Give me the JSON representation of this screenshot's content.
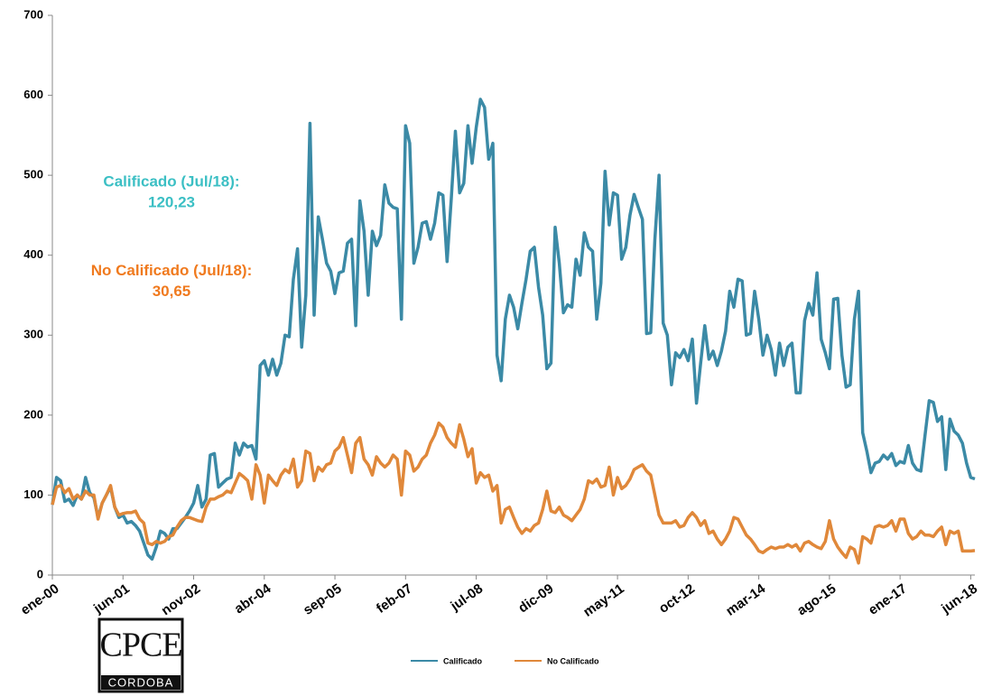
{
  "chart_data": {
    "type": "line",
    "categories": [
      "ene-00",
      null,
      null,
      null,
      null,
      null,
      null,
      null,
      null,
      null,
      null,
      null,
      null,
      null,
      null,
      null,
      null,
      "jun-01",
      null,
      null,
      null,
      null,
      null,
      null,
      null,
      null,
      null,
      null,
      null,
      null,
      null,
      null,
      null,
      null,
      "nov-02",
      null,
      null,
      null,
      null,
      null,
      null,
      null,
      null,
      null,
      null,
      null,
      null,
      null,
      null,
      null,
      null,
      "abr-04",
      null,
      null,
      null,
      null,
      null,
      null,
      null,
      null,
      null,
      null,
      null,
      null,
      null,
      null,
      null,
      null,
      "sep-05",
      null,
      null,
      null,
      null,
      null,
      null,
      null,
      null,
      null,
      null,
      null,
      null,
      null,
      null,
      null,
      null,
      "feb-07",
      null,
      null,
      null,
      null,
      null,
      null,
      null,
      null,
      null,
      null,
      null,
      null,
      null,
      null,
      null,
      null,
      "jul-08",
      null,
      null,
      null,
      null,
      null,
      null,
      null,
      null,
      null,
      null,
      null,
      null,
      null,
      null,
      null,
      null,
      "dic-09",
      null,
      null,
      null,
      null,
      null,
      null,
      null,
      null,
      null,
      null,
      null,
      null,
      null,
      null,
      null,
      null,
      "may-11",
      null,
      null,
      null,
      null,
      null,
      null,
      null,
      null,
      null,
      null,
      null,
      null,
      null,
      null,
      null,
      null,
      "oct-12",
      null,
      null,
      null,
      null,
      null,
      null,
      null,
      null,
      null,
      null,
      null,
      null,
      null,
      null,
      null,
      null,
      "mar-14",
      null,
      null,
      null,
      null,
      null,
      null,
      null,
      null,
      null,
      null,
      null,
      null,
      null,
      null,
      null,
      null,
      "ago-15",
      null,
      null,
      null,
      null,
      null,
      null,
      null,
      null,
      null,
      null,
      null,
      null,
      null,
      null,
      null,
      null,
      "ene-17",
      null,
      null,
      null,
      null,
      null,
      null,
      null,
      null,
      null,
      null,
      null,
      null,
      null,
      null,
      null,
      null,
      "jun-18",
      null
    ],
    "series": [
      {
        "name": "Calificado",
        "color": "#3b8aa6",
        "values": [
          88,
          122,
          118,
          92,
          95,
          87,
          100,
          95,
          122,
          103,
          97,
          72,
          90,
          100,
          110,
          85,
          72,
          75,
          65,
          67,
          62,
          55,
          40,
          25,
          20,
          35,
          55,
          52,
          45,
          58,
          58,
          65,
          72,
          80,
          90,
          112,
          85,
          95,
          150,
          152,
          110,
          115,
          120,
          122,
          165,
          150,
          165,
          160,
          162,
          145,
          262,
          268,
          250,
          270,
          250,
          265,
          300,
          298,
          370,
          408,
          285,
          350,
          565,
          325,
          448,
          420,
          390,
          380,
          352,
          378,
          380,
          415,
          420,
          312,
          468,
          430,
          350,
          430,
          412,
          425,
          488,
          465,
          460,
          458,
          320,
          562,
          540,
          390,
          410,
          440,
          442,
          420,
          440,
          478,
          475,
          392,
          470,
          555,
          478,
          490,
          562,
          515,
          560,
          595,
          585,
          520,
          540,
          275,
          243,
          320,
          350,
          335,
          308,
          340,
          370,
          405,
          410,
          360,
          325,
          258,
          265,
          435,
          390,
          328,
          338,
          335,
          395,
          375,
          428,
          410,
          405,
          320,
          365,
          505,
          438,
          478,
          475,
          395,
          410,
          450,
          476,
          460,
          445,
          302,
          303,
          420,
          500,
          315,
          300,
          238,
          278,
          272,
          282,
          268,
          295,
          215,
          265,
          312,
          270,
          280,
          262,
          280,
          305,
          355,
          335,
          370,
          368,
          300,
          302,
          355,
          320,
          275,
          300,
          282,
          250,
          290,
          262,
          285,
          290,
          228,
          228,
          318,
          340,
          325,
          378,
          295,
          278,
          258,
          345,
          346,
          275,
          235,
          238,
          320,
          355,
          178,
          155,
          128,
          140,
          142,
          150,
          145,
          152,
          137,
          142,
          140,
          162,
          140,
          132,
          130,
          175,
          218,
          216,
          192,
          198,
          132,
          195,
          180,
          175,
          165,
          140,
          122,
          120.23
        ]
      },
      {
        "name": "No Calificado",
        "color": "#e0883a",
        "values": [
          88,
          110,
          112,
          103,
          108,
          95,
          100,
          95,
          105,
          100,
          100,
          70,
          90,
          100,
          112,
          85,
          75,
          77,
          78,
          78,
          80,
          70,
          65,
          40,
          38,
          42,
          40,
          42,
          48,
          50,
          60,
          68,
          72,
          72,
          70,
          68,
          67,
          85,
          95,
          95,
          98,
          100,
          105,
          103,
          115,
          127,
          123,
          118,
          95,
          138,
          125,
          90,
          125,
          118,
          112,
          125,
          132,
          128,
          145,
          110,
          118,
          155,
          152,
          118,
          135,
          130,
          138,
          140,
          155,
          160,
          172,
          150,
          128,
          165,
          172,
          145,
          138,
          125,
          148,
          140,
          135,
          140,
          150,
          145,
          100,
          155,
          150,
          130,
          135,
          145,
          150,
          165,
          175,
          190,
          185,
          172,
          165,
          160,
          188,
          170,
          148,
          158,
          115,
          128,
          122,
          125,
          105,
          112,
          65,
          82,
          85,
          72,
          60,
          52,
          58,
          55,
          62,
          65,
          82,
          105,
          80,
          78,
          85,
          75,
          72,
          68,
          75,
          82,
          95,
          118,
          115,
          120,
          110,
          112,
          135,
          100,
          122,
          108,
          112,
          120,
          132,
          135,
          138,
          130,
          125,
          100,
          75,
          65,
          65,
          65,
          68,
          60,
          62,
          72,
          78,
          72,
          62,
          68,
          52,
          55,
          45,
          38,
          45,
          55,
          72,
          70,
          60,
          50,
          45,
          38,
          30,
          28,
          32,
          35,
          33,
          35,
          35,
          38,
          35,
          38,
          30,
          40,
          42,
          38,
          35,
          33,
          42,
          68,
          45,
          35,
          28,
          22,
          35,
          32,
          15,
          48,
          45,
          40,
          60,
          62,
          60,
          62,
          68,
          55,
          70,
          70,
          52,
          45,
          48,
          55,
          50,
          50,
          48,
          55,
          60,
          38,
          55,
          52,
          55,
          30,
          30,
          30,
          30.65
        ]
      }
    ],
    "ylim": [
      0,
      700
    ],
    "yticks": [
      0,
      100,
      200,
      300,
      400,
      500,
      600,
      700
    ],
    "annotations": [
      {
        "lines": [
          "Calificado (Jul/18):",
          "120,23"
        ],
        "color": "#3bbfc4"
      },
      {
        "lines": [
          "No Calificado (Jul/18):",
          "30,65"
        ],
        "color": "#f07a1e"
      }
    ],
    "logo": {
      "top": "CPCE",
      "bottom": "CORDOBA"
    }
  }
}
